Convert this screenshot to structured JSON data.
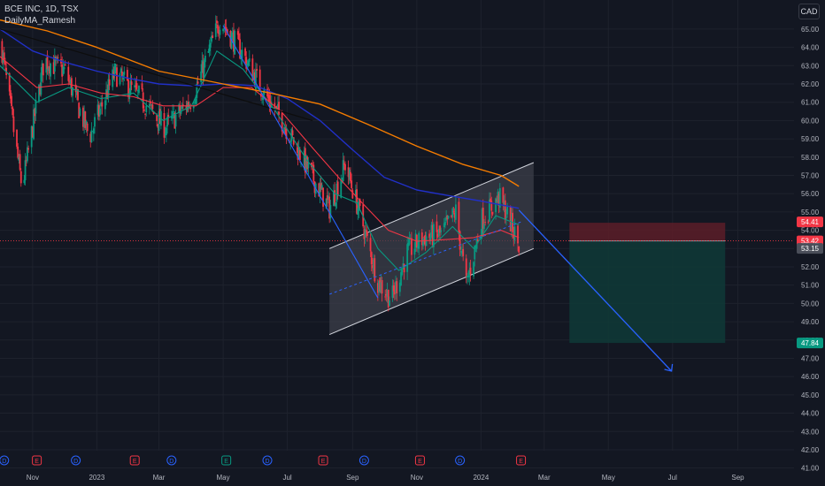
{
  "header": {
    "symbol_line": "BCE INC, 1D, TSX",
    "indicator": "DailyMA_Ramesh",
    "currency": "CAD"
  },
  "chart_data": {
    "type": "line",
    "title": "BCE INC, 1D, TSX",
    "y_axis_ticks": [
      65,
      64,
      63,
      62,
      61,
      60,
      59,
      58,
      57,
      56,
      55,
      54,
      53,
      52,
      51,
      50,
      49,
      48,
      47,
      46,
      45,
      44,
      43,
      42,
      41
    ],
    "y_axis_tick_labels": [
      "65.00",
      "64.00",
      "63.00",
      "62.00",
      "61.00",
      "60.00",
      "59.00",
      "58.00",
      "57.00",
      "56.00",
      "55.00",
      "54.00",
      "53.00",
      "52.00",
      "51.00",
      "50.00",
      "49.00",
      "48.00",
      "47.00",
      "46.00",
      "45.00",
      "44.00",
      "43.00",
      "42.00",
      "41.00"
    ],
    "ylim": [
      40.5,
      66.3
    ],
    "x_axis_labels": [
      "Nov",
      "2023",
      "Mar",
      "May",
      "Jul",
      "Sep",
      "Nov",
      "2024",
      "Mar",
      "May",
      "Jul",
      "Sep"
    ],
    "x_axis_label_dates": [
      "2022-11-01",
      "2023-01-01",
      "2023-03-01",
      "2023-05-01",
      "2023-07-01",
      "2023-09-01",
      "2023-11-01",
      "2024-01-01",
      "2024-03-01",
      "2024-05-01",
      "2024-07-01",
      "2024-09-01"
    ],
    "price_labels": [
      {
        "text": "54.41",
        "value": 54.41,
        "color": "#f23645"
      },
      {
        "text": "53.42",
        "value": 53.42,
        "color": "#f23645"
      },
      {
        "text": "53.15",
        "value": 53.15,
        "color": "#4a4e59"
      },
      {
        "text": "47.84",
        "value": 47.84,
        "color": "#089981"
      }
    ],
    "price_anchor_points": [
      {
        "date": "2022-10-02",
        "close": 64.2
      },
      {
        "date": "2022-10-22",
        "close": 56.3
      },
      {
        "date": "2022-11-12",
        "close": 63.3
      },
      {
        "date": "2022-12-02",
        "close": 62.7
      },
      {
        "date": "2022-12-25",
        "close": 59.1
      },
      {
        "date": "2023-01-18",
        "close": 62.6
      },
      {
        "date": "2023-02-12",
        "close": 61.2
      },
      {
        "date": "2023-03-07",
        "close": 59.6
      },
      {
        "date": "2023-04-02",
        "close": 61.2
      },
      {
        "date": "2023-04-28",
        "close": 65.5
      },
      {
        "date": "2023-05-18",
        "close": 63.8
      },
      {
        "date": "2023-06-06",
        "close": 61.8
      },
      {
        "date": "2023-06-28",
        "close": 59.8
      },
      {
        "date": "2023-07-22",
        "close": 57.2
      },
      {
        "date": "2023-08-10",
        "close": 55.2
      },
      {
        "date": "2023-08-25",
        "close": 57.6
      },
      {
        "date": "2023-09-10",
        "close": 54.5
      },
      {
        "date": "2023-09-25",
        "close": 51.2
      },
      {
        "date": "2023-10-08",
        "close": 50.2
      },
      {
        "date": "2023-10-23",
        "close": 52.8
      },
      {
        "date": "2023-11-08",
        "close": 53.6
      },
      {
        "date": "2023-11-25",
        "close": 53.8
      },
      {
        "date": "2023-12-08",
        "close": 55.0
      },
      {
        "date": "2023-12-18",
        "close": 51.0
      },
      {
        "date": "2024-01-02",
        "close": 54.6
      },
      {
        "date": "2024-01-18",
        "close": 55.8
      },
      {
        "date": "2024-01-28",
        "close": 54.6
      },
      {
        "date": "2024-02-06",
        "close": 53.15
      }
    ],
    "series": [
      {
        "key": "ma_short",
        "color": "#089981",
        "values": [
          {
            "date": "2022-10-01",
            "value": 63.0
          },
          {
            "date": "2022-11-05",
            "value": 61.0
          },
          {
            "date": "2022-12-05",
            "value": 61.8
          },
          {
            "date": "2023-01-05",
            "value": 61.2
          },
          {
            "date": "2023-02-05",
            "value": 61.5
          },
          {
            "date": "2023-03-05",
            "value": 60.0
          },
          {
            "date": "2023-04-01",
            "value": 60.8
          },
          {
            "date": "2023-04-25",
            "value": 63.8
          },
          {
            "date": "2023-05-20",
            "value": 62.8
          },
          {
            "date": "2023-06-20",
            "value": 60.5
          },
          {
            "date": "2023-07-20",
            "value": 57.8
          },
          {
            "date": "2023-08-15",
            "value": 56.0
          },
          {
            "date": "2023-09-05",
            "value": 55.5
          },
          {
            "date": "2023-09-25",
            "value": 53.0
          },
          {
            "date": "2023-10-15",
            "value": 51.8
          },
          {
            "date": "2023-11-10",
            "value": 52.8
          },
          {
            "date": "2023-12-05",
            "value": 54.2
          },
          {
            "date": "2023-12-25",
            "value": 53.0
          },
          {
            "date": "2024-01-15",
            "value": 54.8
          },
          {
            "date": "2024-02-06",
            "value": 54.3
          }
        ]
      },
      {
        "key": "ma_mid",
        "color": "#f23645",
        "values": [
          {
            "date": "2022-10-01",
            "value": 63.5
          },
          {
            "date": "2022-11-05",
            "value": 61.8
          },
          {
            "date": "2022-12-05",
            "value": 62.0
          },
          {
            "date": "2023-01-05",
            "value": 61.5
          },
          {
            "date": "2023-02-05",
            "value": 61.3
          },
          {
            "date": "2023-03-05",
            "value": 60.8
          },
          {
            "date": "2023-04-05",
            "value": 60.8
          },
          {
            "date": "2023-05-01",
            "value": 61.8
          },
          {
            "date": "2023-05-28",
            "value": 61.8
          },
          {
            "date": "2023-06-25",
            "value": 60.5
          },
          {
            "date": "2023-07-25",
            "value": 58.5
          },
          {
            "date": "2023-08-20",
            "value": 56.8
          },
          {
            "date": "2023-09-10",
            "value": 55.5
          },
          {
            "date": "2023-10-05",
            "value": 54.0
          },
          {
            "date": "2023-11-01",
            "value": 53.4
          },
          {
            "date": "2023-12-01",
            "value": 53.5
          },
          {
            "date": "2023-12-25",
            "value": 53.6
          },
          {
            "date": "2024-01-20",
            "value": 54.0
          },
          {
            "date": "2024-02-06",
            "value": 53.6
          }
        ]
      },
      {
        "key": "ma_long",
        "color": "#2130c8",
        "values": [
          {
            "date": "2022-10-01",
            "value": 65.0
          },
          {
            "date": "2022-11-01",
            "value": 63.8
          },
          {
            "date": "2022-12-01",
            "value": 63.2
          },
          {
            "date": "2023-01-01",
            "value": 62.7
          },
          {
            "date": "2023-02-01",
            "value": 62.3
          },
          {
            "date": "2023-03-01",
            "value": 62.0
          },
          {
            "date": "2023-04-01",
            "value": 61.9
          },
          {
            "date": "2023-05-01",
            "value": 62.0
          },
          {
            "date": "2023-06-01",
            "value": 61.9
          },
          {
            "date": "2023-07-01",
            "value": 61.2
          },
          {
            "date": "2023-08-01",
            "value": 60.0
          },
          {
            "date": "2023-09-01",
            "value": 58.4
          },
          {
            "date": "2023-10-01",
            "value": 56.9
          },
          {
            "date": "2023-11-01",
            "value": 56.2
          },
          {
            "date": "2023-12-01",
            "value": 55.9
          },
          {
            "date": "2024-01-01",
            "value": 55.6
          },
          {
            "date": "2024-02-06",
            "value": 55.2
          }
        ]
      },
      {
        "key": "ma_200",
        "color": "#f57c00",
        "values": [
          {
            "date": "2022-10-01",
            "value": 65.5
          },
          {
            "date": "2022-11-15",
            "value": 64.9
          },
          {
            "date": "2023-01-01",
            "value": 64.0
          },
          {
            "date": "2023-03-01",
            "value": 62.7
          },
          {
            "date": "2023-05-01",
            "value": 62.0
          },
          {
            "date": "2023-06-15",
            "value": 61.5
          },
          {
            "date": "2023-08-01",
            "value": 60.9
          },
          {
            "date": "2023-09-15",
            "value": 59.8
          },
          {
            "date": "2023-11-01",
            "value": 58.6
          },
          {
            "date": "2023-12-15",
            "value": 57.6
          },
          {
            "date": "2024-01-20",
            "value": 57.0
          },
          {
            "date": "2024-02-06",
            "value": 56.4
          }
        ]
      },
      {
        "key": "trend_dark",
        "color": "#0d0d0d",
        "values": [
          {
            "date": "2022-10-01",
            "value": 65.0
          },
          {
            "date": "2023-07-25",
            "value": 60.0
          }
        ]
      },
      {
        "key": "down_path",
        "color": "#2962ff",
        "values": [
          {
            "date": "2023-05-01",
            "value": 65.2
          },
          {
            "date": "2023-09-25",
            "value": 50.3
          }
        ]
      },
      {
        "key": "channel_mid",
        "color": "#2962ff",
        "values": [
          {
            "date": "2023-08-10",
            "value": 50.5
          },
          {
            "date": "2024-02-10",
            "value": 54.5
          }
        ]
      },
      {
        "key": "forecast",
        "color": "#2962ff",
        "values": [
          {
            "date": "2024-02-06",
            "value": 55.1
          },
          {
            "date": "2024-06-30",
            "value": 46.3
          }
        ]
      }
    ],
    "channel": {
      "upper": [
        {
          "date": "2023-08-10",
          "value": 53.0
        },
        {
          "date": "2024-02-20",
          "value": 57.7
        }
      ],
      "lower": [
        {
          "date": "2023-08-10",
          "value": 48.3
        },
        {
          "date": "2024-02-20",
          "value": 53.0
        }
      ]
    },
    "position_box": {
      "start_date": "2024-03-25",
      "end_date": "2024-08-20",
      "stop": 54.41,
      "entry": 53.42,
      "target": 47.84
    },
    "horizontal_line": {
      "value": 53.42,
      "color": "#f23645"
    },
    "event_markers": [
      {
        "date": "2022-10-05",
        "label": "D",
        "kind": "dividend"
      },
      {
        "date": "2022-11-05",
        "label": "E",
        "kind": "earnings"
      },
      {
        "date": "2022-12-12",
        "label": "D",
        "kind": "dividend"
      },
      {
        "date": "2023-02-06",
        "label": "E",
        "kind": "earnings"
      },
      {
        "date": "2023-03-13",
        "label": "D",
        "kind": "dividend"
      },
      {
        "date": "2023-05-04",
        "label": "E",
        "kind": "earnings"
      },
      {
        "date": "2023-06-12",
        "label": "D",
        "kind": "dividend"
      },
      {
        "date": "2023-08-04",
        "label": "E",
        "kind": "earnings"
      },
      {
        "date": "2023-09-12",
        "label": "D",
        "kind": "dividend"
      },
      {
        "date": "2023-11-04",
        "label": "E",
        "kind": "earnings"
      },
      {
        "date": "2023-12-12",
        "label": "D",
        "kind": "dividend"
      },
      {
        "date": "2024-02-08",
        "label": "E",
        "kind": "earnings"
      }
    ],
    "colors": {
      "background": "#131722",
      "grid": "#1e222d",
      "axis_text": "#b2b5be",
      "up": "#089981",
      "down": "#f23645",
      "channel_fill": "#3c3f4a",
      "channel_line": "#d1d4dc",
      "stop_zone": "#5c1d28",
      "target_zone": "#0f3a37",
      "dividend_marker": "#2962ff",
      "earnings_marker": "#089981",
      "earnings_marker_alt": "#f23645"
    },
    "grid": true
  }
}
